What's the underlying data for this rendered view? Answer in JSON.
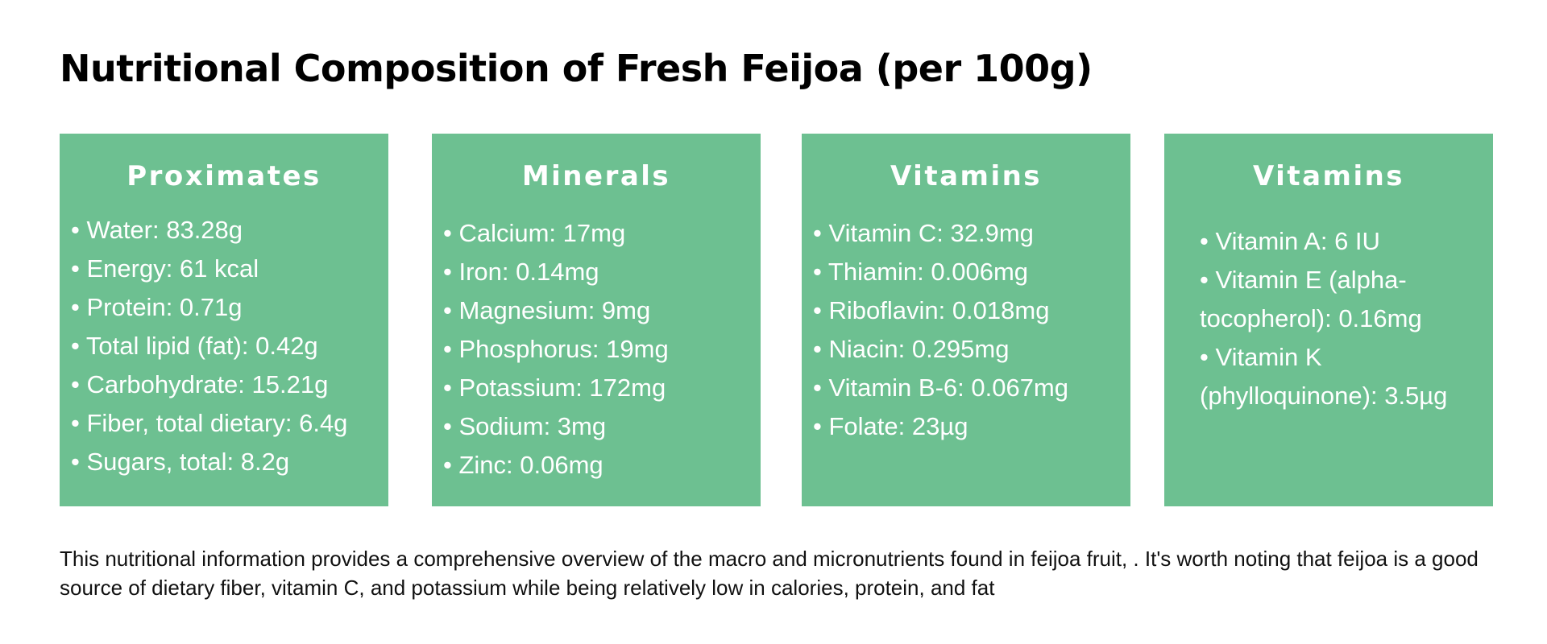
{
  "title": "Nutritional Composition of Fresh Feijoa (per 100g)",
  "colors": {
    "card_background": "#6dc091",
    "card_text": "#ffffff",
    "body_text": "#111111"
  },
  "cards": [
    {
      "heading": "Proximates",
      "items": [
        "• Water: 83.28g",
        "• Energy: 61 kcal",
        "• Protein: 0.71g",
        "• Total lipid (fat): 0.42g",
        "• Carbohydrate: 15.21g",
        "• Fiber, total dietary: 6.4g",
        "• Sugars, total: 8.2g"
      ]
    },
    {
      "heading": "Minerals",
      "items": [
        "• Calcium: 17mg",
        "• Iron: 0.14mg",
        "• Magnesium: 9mg",
        "• Phosphorus: 19mg",
        "• Potassium: 172mg",
        "• Sodium: 3mg",
        "• Zinc: 0.06mg"
      ]
    },
    {
      "heading": "Vitamins",
      "items": [
        "• Vitamin C: 32.9mg",
        "• Thiamin: 0.006mg",
        "• Riboflavin: 0.018mg",
        "• Niacin: 0.295mg",
        "• Vitamin B-6: 0.067mg",
        "• Folate: 23µg"
      ]
    },
    {
      "heading": "Vitamins",
      "items": [
        "• Vitamin A: 6 IU",
        "• Vitamin E (alpha-tocopherol): 0.16mg",
        "• Vitamin K (phylloquinone): 3.5µg"
      ]
    }
  ],
  "footnote": "This nutritional information provides a comprehensive overview of the macro and micronutrients found in feijoa fruit, . It's worth noting that feijoa is a good source of dietary fiber, vitamin C, and potassium while being relatively low in calories, protein, and fat"
}
